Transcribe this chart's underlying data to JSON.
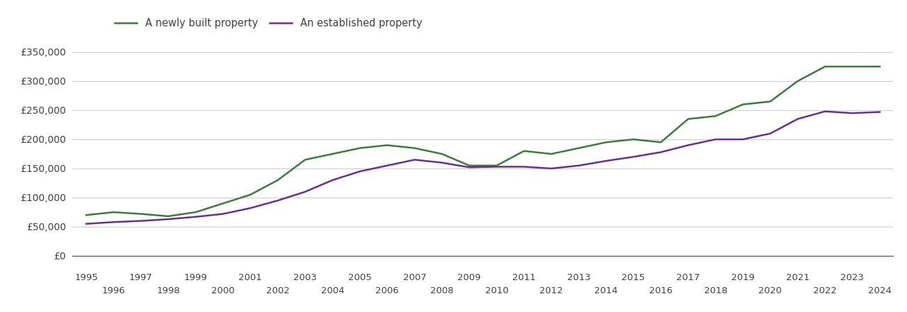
{
  "newly_built": {
    "years": [
      1995,
      1996,
      1997,
      1998,
      1999,
      2000,
      2001,
      2002,
      2003,
      2004,
      2005,
      2006,
      2007,
      2008,
      2009,
      2010,
      2011,
      2012,
      2013,
      2014,
      2015,
      2016,
      2017,
      2018,
      2019,
      2020,
      2021,
      2022,
      2023,
      2024
    ],
    "values": [
      70000,
      75000,
      72000,
      68000,
      75000,
      90000,
      105000,
      130000,
      165000,
      175000,
      185000,
      190000,
      185000,
      175000,
      155000,
      155000,
      180000,
      175000,
      185000,
      195000,
      200000,
      195000,
      235000,
      240000,
      260000,
      265000,
      300000,
      325000,
      325000,
      325000
    ]
  },
  "established": {
    "years": [
      1995,
      1996,
      1997,
      1998,
      1999,
      2000,
      2001,
      2002,
      2003,
      2004,
      2005,
      2006,
      2007,
      2008,
      2009,
      2010,
      2011,
      2012,
      2013,
      2014,
      2015,
      2016,
      2017,
      2018,
      2019,
      2020,
      2021,
      2022,
      2023,
      2024
    ],
    "values": [
      55000,
      58000,
      60000,
      63000,
      67000,
      72000,
      82000,
      95000,
      110000,
      130000,
      145000,
      155000,
      165000,
      160000,
      152000,
      153000,
      153000,
      150000,
      155000,
      163000,
      170000,
      178000,
      190000,
      200000,
      200000,
      210000,
      235000,
      248000,
      245000,
      247000
    ]
  },
  "newly_color": "#3a7a3a",
  "established_color": "#6a2d8f",
  "background_color": "#ffffff",
  "grid_color": "#cccccc",
  "text_color": "#404040",
  "ylim": [
    0,
    375000
  ],
  "yticks": [
    0,
    50000,
    100000,
    150000,
    200000,
    250000,
    300000,
    350000
  ],
  "legend_newly": "A newly built property",
  "legend_established": "An established property",
  "line_width": 1.8
}
